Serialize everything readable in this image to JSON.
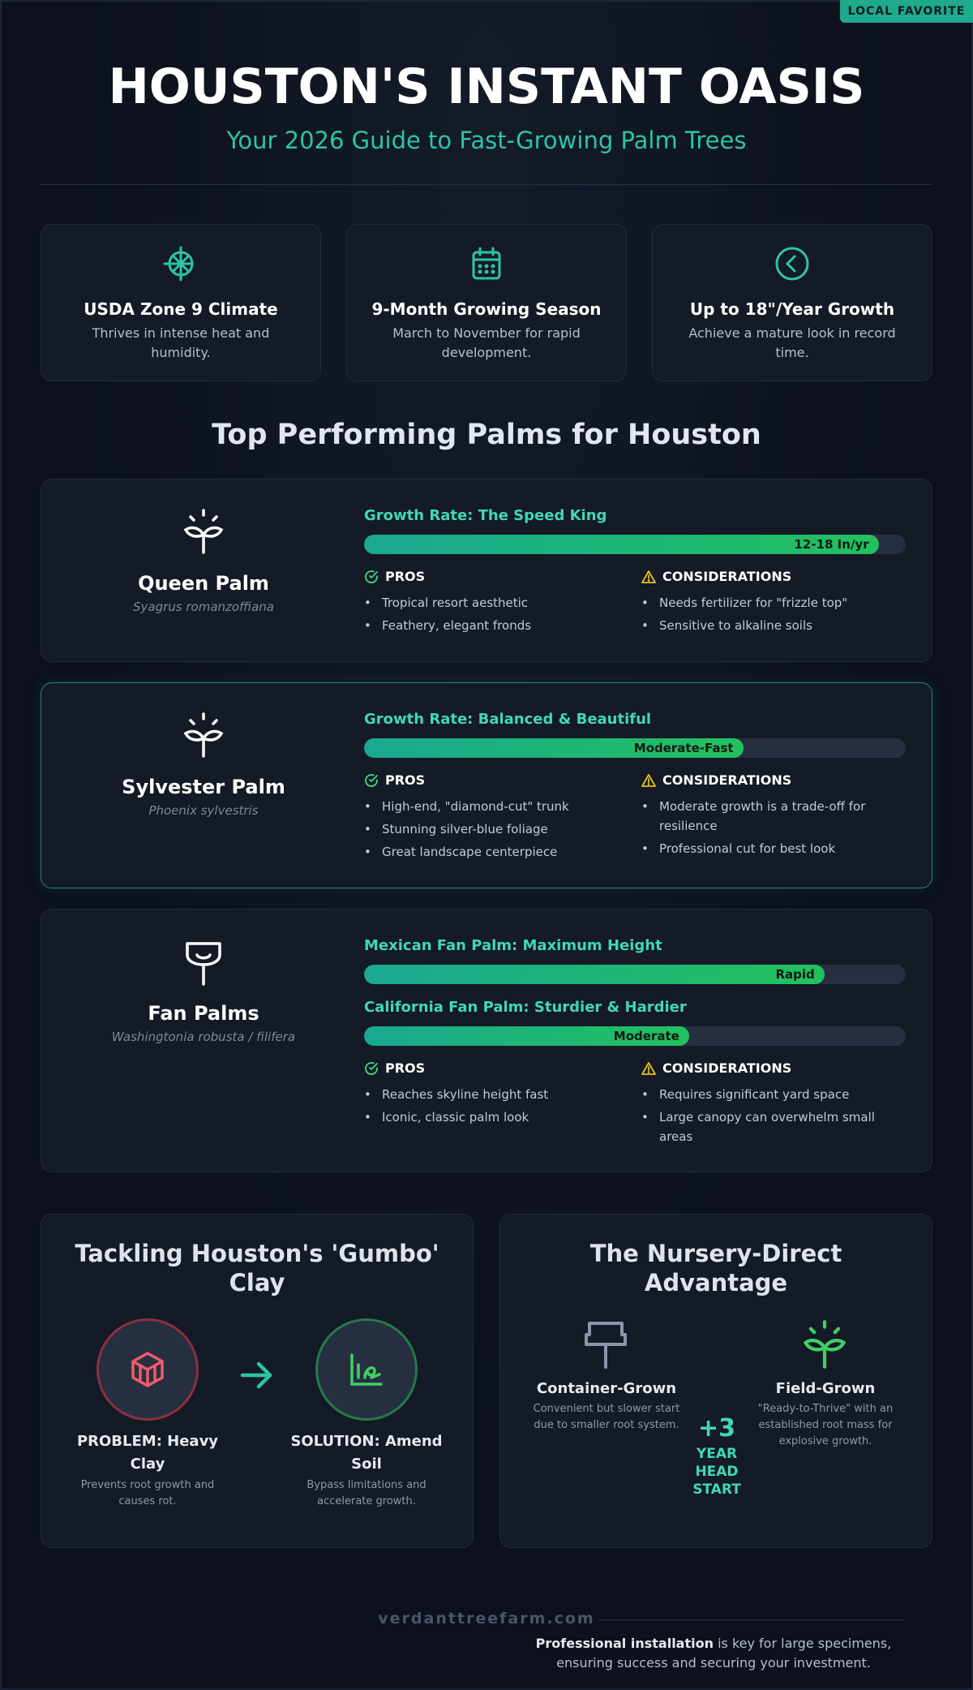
{
  "badge": "LOCAL FAVORITE",
  "header": {
    "title": "HOUSTON'S INSTANT OASIS",
    "subtitle": "Your 2026 Guide to Fast-Growing Palm Trees"
  },
  "stats": [
    {
      "icon": "sun-icon",
      "title": "USDA Zone 9 Climate",
      "desc": "Thrives in intense heat and humidity."
    },
    {
      "icon": "calendar-icon",
      "title": "9-Month Growing Season",
      "desc": "March to November for rapid development."
    },
    {
      "icon": "chevron-circle-icon",
      "title": "Up to 18\"/Year Growth",
      "desc": "Achieve a mature look in record time."
    }
  ],
  "section_title": "Top Performing Palms for Houston",
  "palms": [
    {
      "name": "Queen Palm",
      "scientific": "Syagrus romanzoffiana",
      "icon": "sprout-icon",
      "growth": [
        {
          "label": "Growth Rate: The Speed King",
          "value": "12-18 In/yr",
          "level": 0.95
        }
      ],
      "pros_label": "PROS",
      "cons_label": "CONSIDERATIONS",
      "pros": [
        "Tropical resort aesthetic",
        "Feathery, elegant fronds"
      ],
      "cons": [
        "Needs fertilizer for \"frizzle top\"",
        "Sensitive to alkaline soils"
      ]
    },
    {
      "name": "Sylvester Palm",
      "scientific": "Phoenix sylvestris",
      "icon": "sprout-icon",
      "growth": [
        {
          "label": "Growth Rate: Balanced & Beautiful",
          "value": "Moderate-Fast",
          "level": 0.7
        }
      ],
      "pros_label": "PROS",
      "cons_label": "CONSIDERATIONS",
      "pros": [
        "High-end, \"diamond-cut\" trunk",
        "Stunning silver-blue foliage",
        "Great landscape centerpiece"
      ],
      "cons": [
        "Moderate growth is a trade-off for resilience",
        "Professional cut for best look"
      ]
    },
    {
      "name": "Fan Palms",
      "scientific": "Washingtonia robusta / filifera",
      "icon": "fan-palm-icon",
      "growth": [
        {
          "label": "Mexican Fan Palm: Maximum Height",
          "value": "Rapid",
          "level": 0.85
        },
        {
          "label": "California Fan Palm: Sturdier & Hardier",
          "value": "Moderate",
          "level": 0.6
        }
      ],
      "pros_label": "PROS",
      "cons_label": "CONSIDERATIONS",
      "pros": [
        "Reaches skyline height fast",
        "Iconic, classic palm look"
      ],
      "cons": [
        "Requires significant yard space",
        "Large canopy can overwhelm small areas"
      ]
    }
  ],
  "clay": {
    "title": "Tackling Houston's 'Gumbo' Clay",
    "problem_title": "PROBLEM: Heavy Clay",
    "problem_desc": "Prevents root growth and causes rot.",
    "solution_title": "SOLUTION: Amend Soil",
    "solution_desc": "Bypass limitations and accelerate growth."
  },
  "nursery": {
    "title": "The Nursery-Direct Advantage",
    "container_title": "Container-Grown",
    "container_desc": "Convenient but slower start due to smaller root system.",
    "field_title": "Field-Grown",
    "field_desc": "\"Ready-to-Thrive\" with an established root mass for explosive growth.",
    "headstart_value": "+3",
    "headstart_label": "YEAR HEAD START"
  },
  "footer": {
    "url": "verdanttreefarm.com",
    "bold": "Professional installation",
    "text": " is key for large specimens, ensuring success and securing your investment."
  }
}
